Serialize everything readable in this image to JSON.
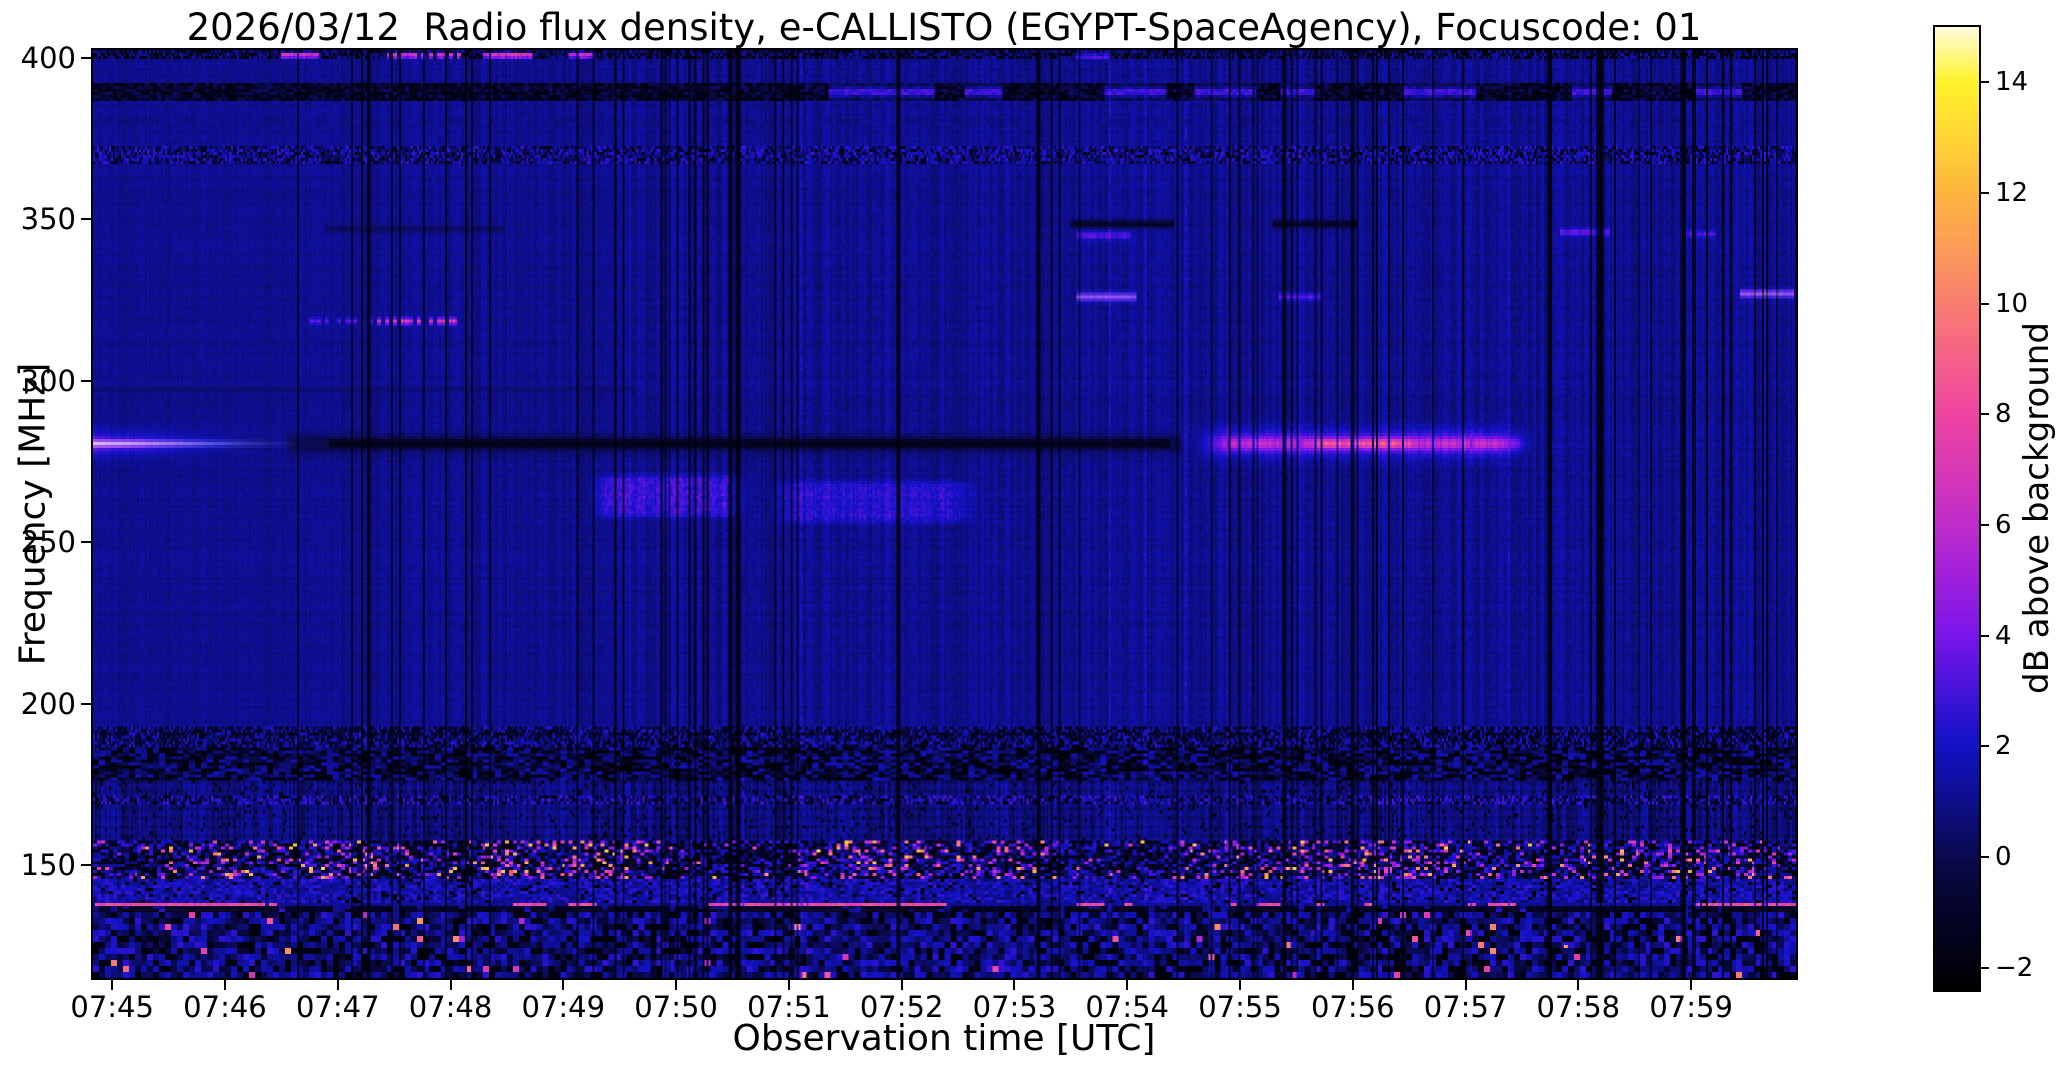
{
  "chart_data": {
    "type": "heatmap",
    "title": "2026/03/12  Radio flux density, e-CALLISTO (EGYPT-SpaceAgency), Focuscode: 01",
    "xlabel": "Observation time [UTC]",
    "ylabel": "Frequency [MHz]",
    "colorbar_label": "dB above background",
    "x_ticks": {
      "labels": [
        "07:45",
        "07:46",
        "07:47",
        "07:48",
        "07:49",
        "07:50",
        "07:51",
        "07:52",
        "07:53",
        "07:54",
        "07:55",
        "07:56",
        "07:57",
        "07:58",
        "07:59"
      ],
      "minutes": [
        45,
        46,
        47,
        48,
        49,
        50,
        51,
        52,
        53,
        54,
        55,
        56,
        57,
        58,
        59
      ]
    },
    "y_ticks_mhz": [
      400,
      350,
      300,
      250,
      200,
      150
    ],
    "colorbar_ticks_db": [
      14,
      12,
      10,
      8,
      6,
      4,
      2,
      0,
      -2
    ],
    "time_range_minutes": [
      44.83,
      59.93
    ],
    "freq_range_mhz": [
      115,
      402.5
    ],
    "db_range": [
      -2.4,
      15.0
    ],
    "grid": "off",
    "background_db": 1.05,
    "colormap_stops": [
      [
        0.0,
        "#000000"
      ],
      [
        0.04,
        "#020216"
      ],
      [
        0.09,
        "#05052e"
      ],
      [
        0.138,
        "#0a0a4e"
      ],
      [
        0.196,
        "#0e0e8c"
      ],
      [
        0.253,
        "#1212c6"
      ],
      [
        0.31,
        "#4413da"
      ],
      [
        0.368,
        "#7a15ea"
      ],
      [
        0.425,
        "#9e20dc"
      ],
      [
        0.483,
        "#bf2ccb"
      ],
      [
        0.54,
        "#d838b5"
      ],
      [
        0.598,
        "#ee44a0"
      ],
      [
        0.655,
        "#f46189"
      ],
      [
        0.713,
        "#f97e70"
      ],
      [
        0.77,
        "#fb9b58"
      ],
      [
        0.828,
        "#fdb53e"
      ],
      [
        0.885,
        "#fed434"
      ],
      [
        0.943,
        "#fff22a"
      ],
      [
        1.0,
        "#fffbdc"
      ]
    ],
    "features": {
      "bright_lines": [
        {
          "f": 280.5,
          "sigma": 2.6,
          "t0": 44.83,
          "t1": 46.9,
          "db": 3.2,
          "fade": "right"
        },
        {
          "f": 280.5,
          "sigma": 0.9,
          "t0": 44.83,
          "t1": 46.7,
          "db": 6.0,
          "fade": "right",
          "white_core": 0.85
        },
        {
          "f": 280.5,
          "sigma": 3.0,
          "t0": 54.4,
          "t1": 57.74,
          "db": 3.4,
          "fade": "edges"
        },
        {
          "f": 280.5,
          "sigma": 1.2,
          "t0": 54.5,
          "t1": 57.74,
          "db": 6.0,
          "fade": "edges"
        },
        {
          "f": 280.5,
          "sigma": 0.8,
          "t0": 55.3,
          "t1": 56.9,
          "db": 8.6,
          "fade": "edges"
        },
        {
          "f": 318.5,
          "sigma": 0.7,
          "t0": 46.7,
          "t1": 47.3,
          "db": 3.4,
          "dash": 0.4
        },
        {
          "f": 318.5,
          "sigma": 0.7,
          "t0": 47.35,
          "t1": 48.05,
          "db": 6.6,
          "dash": 0.45
        },
        {
          "f": 345.0,
          "sigma": 0.8,
          "t0": 53.55,
          "t1": 54.0,
          "db": 3.4
        },
        {
          "f": 326.0,
          "sigma": 0.9,
          "t0": 53.55,
          "t1": 54.05,
          "db": 4.0,
          "white_core": 0.3
        },
        {
          "f": 326.0,
          "sigma": 0.8,
          "t0": 55.35,
          "t1": 55.7,
          "db": 3.4
        },
        {
          "f": 346.0,
          "sigma": 0.8,
          "t0": 57.85,
          "t1": 58.25,
          "db": 3.6
        },
        {
          "f": 345.5,
          "sigma": 0.7,
          "t0": 58.95,
          "t1": 59.2,
          "db": 3.2
        },
        {
          "f": 327.0,
          "sigma": 0.9,
          "t0": 59.45,
          "t1": 59.88,
          "db": 4.2,
          "white_core": 0.3
        },
        {
          "f": 400.8,
          "sigma": 0.6,
          "t0": 46.5,
          "t1": 46.8,
          "db": 7.2
        },
        {
          "f": 400.8,
          "sigma": 0.6,
          "t0": 47.45,
          "t1": 48.1,
          "db": 7.2,
          "dash": 0.55
        },
        {
          "f": 400.8,
          "sigma": 0.6,
          "t0": 48.3,
          "t1": 48.7,
          "db": 7.6
        },
        {
          "f": 400.8,
          "sigma": 0.6,
          "t0": 49.05,
          "t1": 49.25,
          "db": 7.0
        },
        {
          "f": 400.5,
          "sigma": 0.6,
          "t0": 53.55,
          "t1": 53.8,
          "db": 3.6
        }
      ],
      "dark_lines": [
        {
          "f": 280.5,
          "sigma": 1.0,
          "t0": 46.55,
          "t1": 54.45,
          "db": -2.1,
          "s": 1.0
        },
        {
          "f": 280.5,
          "sigma": 2.4,
          "t0": 46.55,
          "t1": 54.45,
          "db": -1.0,
          "s": 0.45
        },
        {
          "f": 348.5,
          "sigma": 0.8,
          "t0": 53.5,
          "t1": 54.4,
          "db": -1.6,
          "s": 0.9
        },
        {
          "f": 348.5,
          "sigma": 0.8,
          "t0": 55.3,
          "t1": 56.0,
          "db": -1.6,
          "s": 0.9
        },
        {
          "f": 347.0,
          "sigma": 0.7,
          "t0": 46.9,
          "t1": 48.45,
          "db": -0.8,
          "s": 0.5
        },
        {
          "f": 297.5,
          "sigma": 0.7,
          "t0": 44.83,
          "t1": 49.6,
          "db": 0.0,
          "s": 0.5
        },
        {
          "f": 380.5,
          "sigma": 0.5,
          "t0": 44.83,
          "t1": 59.93,
          "db": 0.0,
          "s": 0.4,
          "dash": 0.5
        },
        {
          "f": 190.5,
          "sigma": 0.5,
          "t0": 44.83,
          "t1": 59.93,
          "db": -1.2,
          "s": 0.8,
          "dash": 0.5
        },
        {
          "f": 136.3,
          "sigma": 0.55,
          "t0": 44.83,
          "t1": 59.93,
          "db": -2.1,
          "s": 0.95,
          "dash": 0.2
        }
      ],
      "bright_patches": [
        {
          "f0": 256,
          "f1": 272,
          "t0": 49.2,
          "t1": 50.65,
          "db": 2.7
        },
        {
          "f0": 255,
          "f1": 270,
          "t0": 50.8,
          "t1": 52.7,
          "db": 2.3
        }
      ],
      "bands": [
        {
          "f0": 400.3,
          "f1": 402.5,
          "base": 0.3,
          "noise": 1.4,
          "dark": 0.3,
          "bw": 1
        },
        {
          "f0": 387.5,
          "f1": 391.5,
          "base": -0.7,
          "noise": 1.1,
          "dark": 0.25,
          "bw": 2,
          "bright_segments": [
            [
              51.35,
              52.3
            ],
            [
              52.55,
              52.9
            ],
            [
              53.8,
              54.35
            ],
            [
              54.6,
              55.15
            ],
            [
              55.35,
              55.65
            ],
            [
              56.45,
              57.1
            ],
            [
              57.95,
              58.3
            ],
            [
              59.05,
              59.45
            ]
          ],
          "bright_db": 3.2
        },
        {
          "f0": 367.5,
          "f1": 372.5,
          "base": 0.9,
          "noise": 1.9,
          "dark": 0.1,
          "bw": 1
        },
        {
          "f0": 185.5,
          "f1": 192.0,
          "base": 0.6,
          "noise": 2.0,
          "dark": 0.18,
          "bw": 1
        },
        {
          "f0": 175.5,
          "f1": 185.5,
          "base": 0.4,
          "noise": 1.5,
          "dark": 0.38,
          "bw": 3
        },
        {
          "f0": 158.0,
          "f1": 175.5,
          "base": 0.9,
          "noise": 0.9,
          "dark": 0.05,
          "bw": 1,
          "stripe": 1
        },
        {
          "f0": 169.3,
          "f1": 171.2,
          "base": 1.1,
          "noise": 2.1,
          "dark": 0.15,
          "bw": 1
        },
        {
          "f0": 145.5,
          "f1": 157.0,
          "base": 0.8,
          "noise": 2.3,
          "dark": 0.3,
          "bw": 2,
          "clusters": [
            45.9,
            47.1,
            48.4,
            49.35,
            51.75,
            52.9,
            55.2,
            56.0,
            56.6,
            57.8,
            58.7,
            59.5
          ],
          "cl_sigma": 0.45,
          "bright_max": 13
        },
        {
          "f0": 138.5,
          "f1": 145.5,
          "base": 1.6,
          "noise": 1.1,
          "dark": 0.08,
          "bw": 2
        },
        {
          "f0": 115.0,
          "f1": 136.0,
          "base": 0.9,
          "noise": 1.7,
          "dark": 0.22,
          "bw": 3,
          "bh": 2,
          "spark": 0.012
        }
      ],
      "magenta_line": {
        "f": 137.3,
        "db": 8.0,
        "segments": [
          [
            44.85,
            46.35
          ],
          [
            48.55,
            48.85
          ],
          [
            49.05,
            49.3
          ],
          [
            50.35,
            52.4
          ],
          [
            53.55,
            53.8
          ],
          [
            55.15,
            55.35
          ],
          [
            57.2,
            57.45
          ],
          [
            59.1,
            59.9
          ]
        ],
        "random_dash_frac": 0.07
      },
      "hot_spots": [
        {
          "t": 57.88,
          "f": 124.5,
          "db": 12.0
        },
        {
          "t": 49.35,
          "f": 150.8,
          "db": 12.5
        },
        {
          "t": 51.75,
          "f": 150.5,
          "db": 13.0
        },
        {
          "t": 56.1,
          "f": 151.5,
          "db": 12.0
        },
        {
          "t": 58.9,
          "f": 127.0,
          "db": 9.0
        },
        {
          "t": 47.6,
          "f": 150.2,
          "db": 11.0
        }
      ],
      "dark_columns": {
        "clusters": [
          {
            "t": 47.35,
            "span": 0.5,
            "n": 5
          },
          {
            "t": 48.1,
            "span": 0.3,
            "n": 3
          },
          {
            "t": 49.3,
            "span": 0.5,
            "n": 4
          },
          {
            "t": 50.15,
            "span": 0.7,
            "n": 9
          },
          {
            "t": 50.9,
            "span": 0.3,
            "n": 3
          },
          {
            "t": 52.1,
            "span": 0.4,
            "n": 3
          },
          {
            "t": 53.3,
            "span": 0.3,
            "n": 3
          },
          {
            "t": 54.9,
            "span": 0.45,
            "n": 5
          },
          {
            "t": 55.55,
            "span": 0.5,
            "n": 6
          },
          {
            "t": 56.2,
            "span": 0.55,
            "n": 7
          },
          {
            "t": 58.35,
            "span": 0.6,
            "n": 7
          },
          {
            "t": 59.15,
            "span": 0.4,
            "n": 5
          },
          {
            "t": 59.65,
            "span": 0.3,
            "n": 4
          }
        ],
        "strong": [
          57.74,
          58.93,
          50.55
        ],
        "sparse_n": 24,
        "sparse_t": [
          46.1,
          59.9
        ]
      },
      "bright_columns": {
        "n": 14,
        "t": [
          50.0,
          59.9
        ],
        "db": 0.9
      }
    }
  }
}
